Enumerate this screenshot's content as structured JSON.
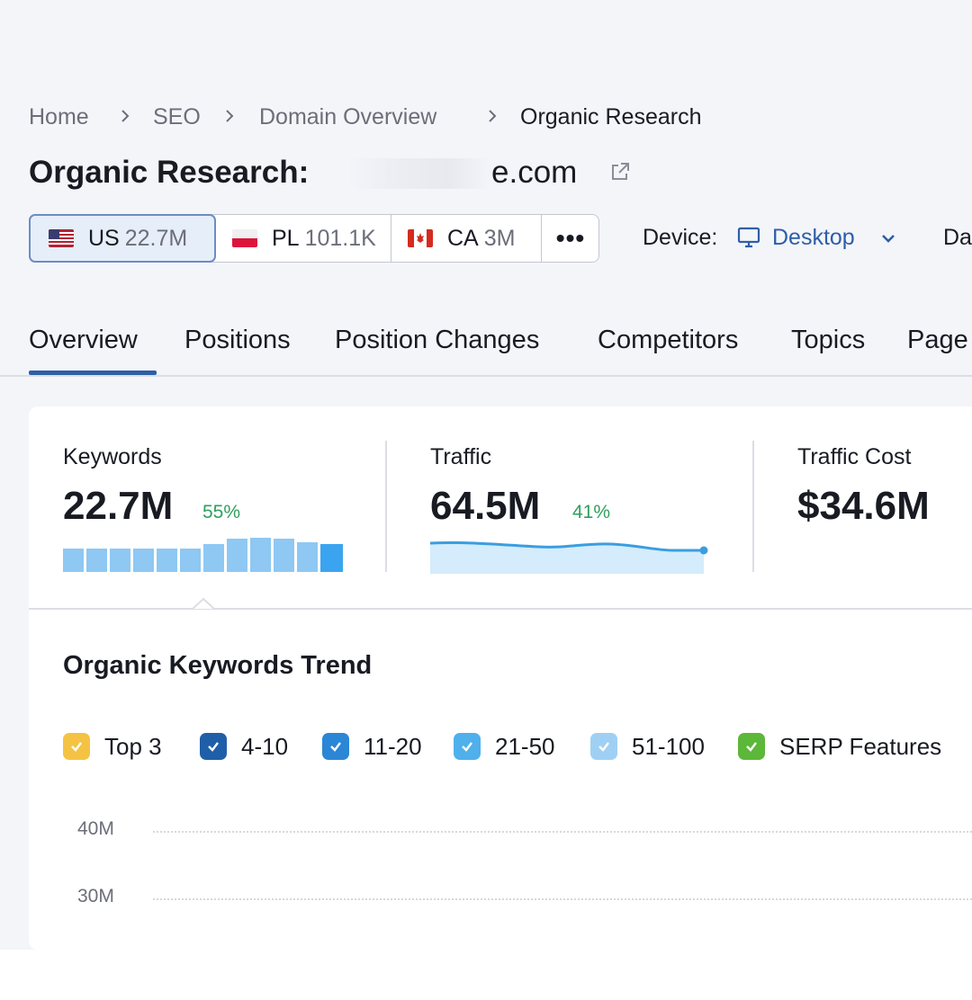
{
  "breadcrumb": {
    "items": [
      "Home",
      "SEO",
      "Domain Overview"
    ],
    "current": "Organic Research"
  },
  "header": {
    "title_prefix": "Organic Research:",
    "domain_visible_suffix": "e.com",
    "external_icon": "external-link-icon"
  },
  "databases": [
    {
      "code": "US",
      "count": "22.7M",
      "flag": "us-flag-icon",
      "active": true
    },
    {
      "code": "PL",
      "count": "101.1K",
      "flag": "pl-flag-icon",
      "active": false
    },
    {
      "code": "CA",
      "count": "3M",
      "flag": "ca-flag-icon",
      "active": false
    }
  ],
  "more_label": "•••",
  "device": {
    "label": "Device:",
    "value": "Desktop",
    "icon": "desktop-icon",
    "chevron": "chevron-down-icon"
  },
  "date_label_truncated": "Da",
  "nav_tabs": [
    {
      "label": "Overview",
      "active": true
    },
    {
      "label": "Positions",
      "active": false
    },
    {
      "label": "Position Changes",
      "active": false
    },
    {
      "label": "Competitors",
      "active": false
    },
    {
      "label": "Topics",
      "active": false
    },
    {
      "label": "Page",
      "active": false
    }
  ],
  "metrics": {
    "keywords": {
      "label": "Keywords",
      "value": "22.7M",
      "pct": "55%"
    },
    "traffic": {
      "label": "Traffic",
      "value": "64.5M",
      "pct": "41%"
    },
    "traffic_cost": {
      "label": "Traffic Cost",
      "value": "$34.6M"
    }
  },
  "trend": {
    "title": "Organic Keywords Trend",
    "legend": [
      {
        "label": "Top 3",
        "color": "#f5c343"
      },
      {
        "label": "4-10",
        "color": "#1f5fa8"
      },
      {
        "label": "11-20",
        "color": "#2b86d6"
      },
      {
        "label": "21-50",
        "color": "#4fb0ec"
      },
      {
        "label": "51-100",
        "color": "#9fd0f4"
      },
      {
        "label": "SERP Features",
        "color": "#5cb838"
      }
    ],
    "y_ticks": [
      "40M",
      "30M"
    ]
  },
  "colors": {
    "accent": "#2e5ea7",
    "positive": "#2f9f5f",
    "bar": "#8ec8f3",
    "bar_latest": "#3aa4f0",
    "traffic_line": "#3a9ee0",
    "traffic_fill": "#d4ecfb"
  }
}
